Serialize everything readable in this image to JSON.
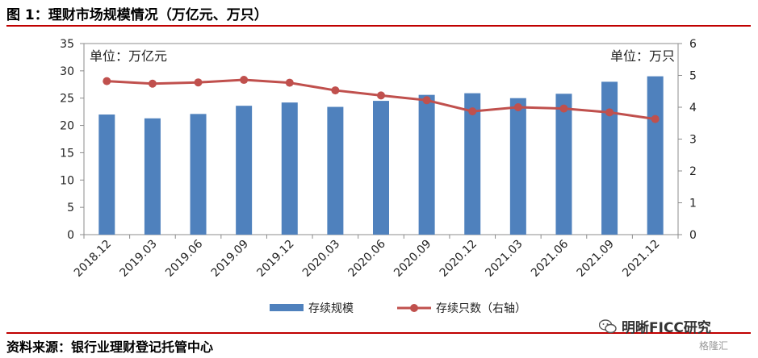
{
  "header": {
    "title": "图 1：理财市场规模情况（万亿元、万只）"
  },
  "footer": {
    "source": "资料来源：银行业理财登记托管中心"
  },
  "watermark": {
    "text": "明晰FICC研究",
    "sub": "格隆汇"
  },
  "colors": {
    "bar": "#4f81bd",
    "line": "#c0504d",
    "rule": "#c00000"
  },
  "chart_data": {
    "type": "bar",
    "categories": [
      "2018.12",
      "2019.03",
      "2019.06",
      "2019.09",
      "2019.12",
      "2020.03",
      "2020.06",
      "2020.09",
      "2020.12",
      "2021.03",
      "2021.06",
      "2021.09",
      "2021.12"
    ],
    "series": [
      {
        "name": "存续规模",
        "type": "bar",
        "axis": "left",
        "values": [
          22.0,
          21.3,
          22.1,
          23.6,
          24.2,
          23.4,
          24.5,
          25.6,
          25.9,
          25.0,
          25.8,
          28.0,
          29.0
        ]
      },
      {
        "name": "存续只数（右轴）",
        "type": "line",
        "axis": "right",
        "values": [
          4.82,
          4.74,
          4.78,
          4.86,
          4.77,
          4.53,
          4.37,
          4.22,
          3.87,
          4.0,
          3.96,
          3.84,
          3.63
        ]
      }
    ],
    "left_unit": "单位：万亿元",
    "right_unit": "单位：万只",
    "ylim": [
      0,
      35
    ],
    "yticks": [
      0,
      5,
      10,
      15,
      20,
      25,
      30,
      35
    ],
    "y2lim": [
      0,
      6
    ],
    "y2ticks": [
      0,
      1,
      2,
      3,
      4,
      5,
      6
    ],
    "legend": "bottom-center",
    "grid": false
  }
}
